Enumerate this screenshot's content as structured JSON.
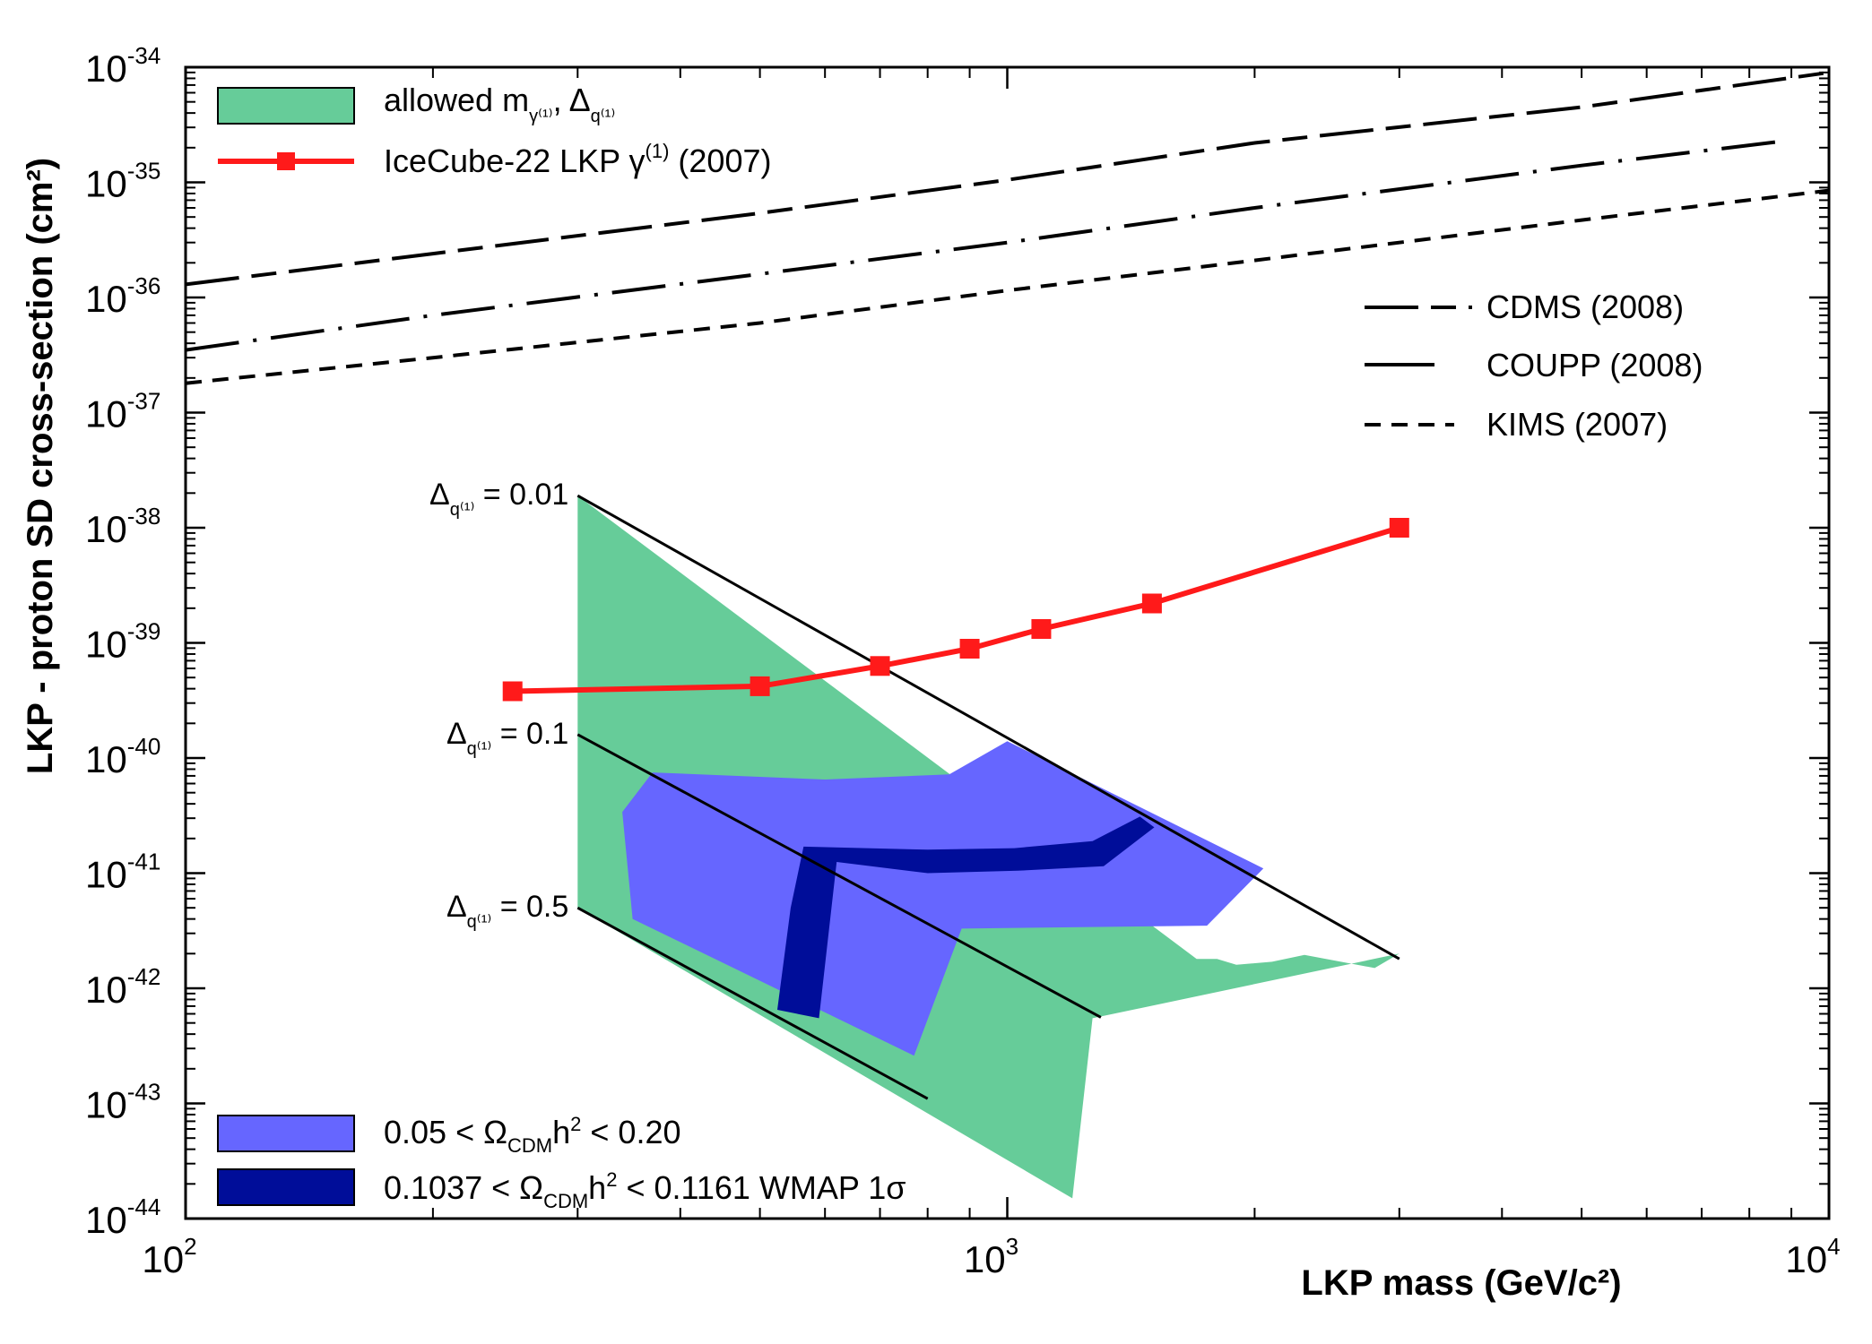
{
  "chart_data": {
    "type": "line",
    "title": "",
    "xlabel": "LKP mass (GeV/c²)",
    "ylabel": "LKP - proton SD cross-section (cm²)",
    "xscale": "log",
    "yscale": "log",
    "xlim": [
      100,
      10000
    ],
    "ylim": [
      1e-44,
      1e-34
    ],
    "x_tick_labels": [
      {
        "value": 100,
        "base": "10",
        "exp": "2"
      },
      {
        "value": 1000,
        "base": "10",
        "exp": "3"
      },
      {
        "value": 10000,
        "base": "10",
        "exp": "4"
      }
    ],
    "y_tick_labels": [
      {
        "value": 1e-34,
        "base": "10",
        "exp": "-34"
      },
      {
        "value": 1e-35,
        "base": "10",
        "exp": "-35"
      },
      {
        "value": 1e-36,
        "base": "10",
        "exp": "-36"
      },
      {
        "value": 1e-37,
        "base": "10",
        "exp": "-37"
      },
      {
        "value": 1e-38,
        "base": "10",
        "exp": "-38"
      },
      {
        "value": 1e-39,
        "base": "10",
        "exp": "-39"
      },
      {
        "value": 1e-40,
        "base": "10",
        "exp": "-40"
      },
      {
        "value": 1e-41,
        "base": "10",
        "exp": "-41"
      },
      {
        "value": 1e-42,
        "base": "10",
        "exp": "-42"
      },
      {
        "value": 1e-43,
        "base": "10",
        "exp": "-43"
      },
      {
        "value": 1e-44,
        "base": "10",
        "exp": "-44"
      }
    ],
    "series": [
      {
        "name": "IceCube-22 LKP γ(1) (2007)",
        "color": "#ff1a1a",
        "marker": "square",
        "points": [
          [
            250,
            3.8e-40
          ],
          [
            500,
            4.2e-40
          ],
          [
            700,
            6.3e-40
          ],
          [
            900,
            8.9e-40
          ],
          [
            1100,
            1.32e-39
          ],
          [
            1500,
            2.2e-39
          ],
          [
            3000,
            1e-38
          ]
        ]
      },
      {
        "name": "CDMS (2008)",
        "color": "#000000",
        "dash": "long-short",
        "points": [
          [
            100,
            1.3e-36
          ],
          [
            200,
            2.4e-36
          ],
          [
            500,
            5.4e-36
          ],
          [
            1000,
            1.05e-35
          ],
          [
            2000,
            2.2e-35
          ],
          [
            5000,
            4.5e-35
          ],
          [
            10000,
            9e-35
          ]
        ]
      },
      {
        "name": "COUPP (2008)",
        "color": "#000000",
        "dash": "long-dot",
        "points": [
          [
            100,
            3.5e-37
          ],
          [
            200,
            7e-37
          ],
          [
            500,
            1.6e-36
          ],
          [
            1000,
            3e-36
          ],
          [
            2000,
            6e-36
          ],
          [
            5000,
            1.4e-35
          ],
          [
            8900,
            2.3e-35
          ]
        ]
      },
      {
        "name": "KIMS (2007)",
        "color": "#000000",
        "dash": "short",
        "points": [
          [
            100,
            1.8e-37
          ],
          [
            200,
            3e-37
          ],
          [
            500,
            6e-37
          ],
          [
            1000,
            1.15e-36
          ],
          [
            2000,
            2.1e-36
          ],
          [
            5000,
            4.7e-36
          ],
          [
            10000,
            8.5e-36
          ]
        ]
      }
    ],
    "regions": [
      {
        "name": "allowed m_γ(1), Δ_q(1)",
        "color": "#66cc99",
        "points": [
          [
            300,
            1.9e-38
          ],
          [
            1700,
            1.8e-42
          ],
          [
            1800,
            1.8e-42
          ],
          [
            1900,
            1.6e-42
          ],
          [
            2100,
            1.7e-42
          ],
          [
            2300,
            1.95e-42
          ],
          [
            2800,
            1.5e-42
          ],
          [
            3000,
            2e-42
          ],
          [
            1270,
            5.5e-43
          ],
          [
            1200,
            1.5e-44
          ],
          [
            300,
            5e-42
          ]
        ]
      },
      {
        "name": "0.05 < Ω_CDM h² < 0.20",
        "color": "#6666ff",
        "points": [
          [
            370,
            7.5e-41
          ],
          [
            600,
            6.5e-41
          ],
          [
            850,
            7.2e-41
          ],
          [
            1000,
            1.4e-40
          ],
          [
            2050,
            1.1e-41
          ],
          [
            1750,
            3.5e-42
          ],
          [
            880,
            3.3e-42
          ],
          [
            770,
            2.6e-43
          ],
          [
            350,
            4e-42
          ],
          [
            340,
            3.4e-41
          ]
        ]
      },
      {
        "name": "0.1037 < Ω_CDM h² < 0.1161 WMAP 1σ",
        "color": "#000d99",
        "points": [
          [
            565,
            1.7e-41
          ],
          [
            800,
            1.6e-41
          ],
          [
            1020,
            1.65e-41
          ],
          [
            1270,
            1.9e-41
          ],
          [
            1450,
            3.1e-41
          ],
          [
            1510,
            2.5e-41
          ],
          [
            1310,
            1.15e-41
          ],
          [
            1030,
            1.05e-41
          ],
          [
            800,
            1e-41
          ],
          [
            620,
            1.25e-41
          ],
          [
            590,
            5.5e-43
          ],
          [
            525,
            6.5e-43
          ],
          [
            545,
            5e-42
          ]
        ]
      }
    ],
    "boundary_lines": [
      {
        "label_symbol": "Δ",
        "label_sub": "q⁽¹⁾",
        "label_text": "= 0.01",
        "points": [
          [
            300,
            1.9e-38
          ],
          [
            3000,
            1.8e-42
          ]
        ]
      },
      {
        "label_symbol": "Δ",
        "label_sub": "q⁽¹⁾",
        "label_text": "= 0.1",
        "points": [
          [
            300,
            1.6e-40
          ],
          [
            1300,
            5.6e-43
          ]
        ]
      },
      {
        "label_symbol": "Δ",
        "label_sub": "q⁽¹⁾",
        "label_text": "= 0.5",
        "points": [
          [
            300,
            5e-42
          ],
          [
            800,
            1.1e-43
          ]
        ]
      }
    ],
    "legend_top_left": {
      "allowed": {
        "prefix": "allowed m",
        "sub1": "γ⁽¹⁾",
        "mid": ", Δ",
        "sub2": "q⁽¹⁾"
      },
      "icecube": {
        "prefix": "IceCube-22 LKP γ",
        "sup": "(1)",
        "suffix": " (2007)"
      }
    },
    "legend_right": [
      {
        "label": "CDMS (2008)"
      },
      {
        "label": "COUPP (2008)"
      },
      {
        "label": "KIMS (2007)"
      }
    ],
    "legend_bottom_left": {
      "relic": {
        "prefix": "0.05 < Ω",
        "sub": "CDM",
        "mid": "h",
        "sup": "2",
        "suffix": " < 0.20"
      },
      "wmap": {
        "prefix": "0.1037 < Ω",
        "sub": "CDM",
        "mid": "h",
        "sup": "2",
        "suffix": " < 0.1161 WMAP 1σ"
      }
    }
  }
}
